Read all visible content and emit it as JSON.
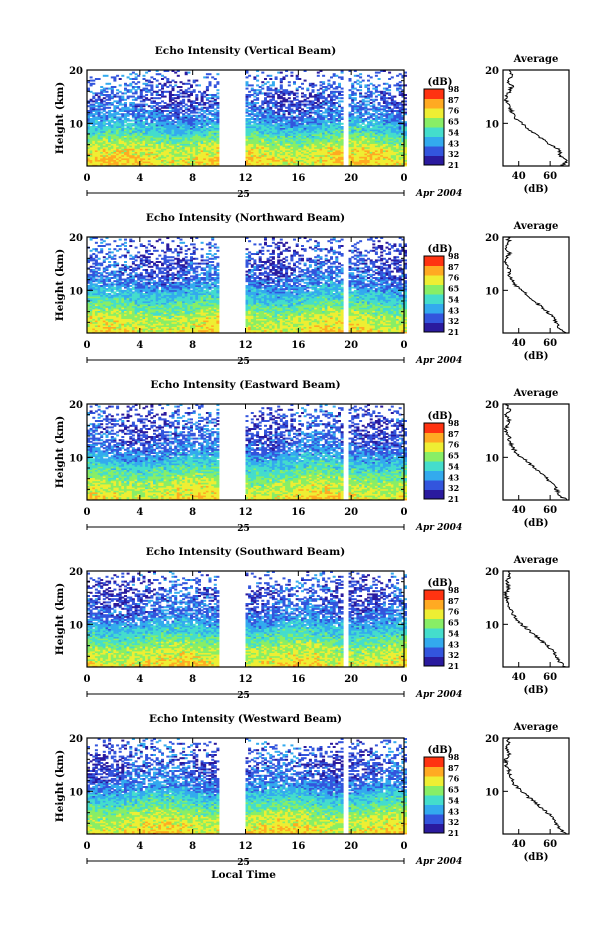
{
  "chart_data": [
    {
      "type": "heatmap",
      "title": "Echo Intensity (Vertical Beam)",
      "ylabel": "Height (km)",
      "y_ticks": [
        "20",
        "10"
      ],
      "x_ticks": [
        "0",
        "4",
        "8",
        "12",
        "16",
        "20",
        "0"
      ],
      "date_day": "25",
      "date_label": "Apr 2004",
      "ylim": [
        2,
        20
      ],
      "xlim": [
        0,
        24
      ],
      "data_gaps_hours": [
        [
          9.8,
          11.8
        ],
        [
          19.2,
          19.6
        ]
      ],
      "colorbar_label": "(dB)",
      "colorbar_ticks": [
        "98",
        "87",
        "76",
        "65",
        "54",
        "43",
        "32",
        "21"
      ],
      "profile": {
        "title": "Average",
        "xlabel": "(dB)",
        "x_ticks": [
          "40",
          "60"
        ],
        "y_ticks": [
          "20",
          "10"
        ],
        "xlim": [
          30,
          72
        ],
        "ylim": [
          2,
          20
        ],
        "heights": [
          2,
          3,
          4,
          5,
          6,
          7,
          8,
          9,
          10,
          11,
          12,
          13,
          14,
          15,
          16,
          17,
          18,
          19,
          20
        ],
        "values": [
          68,
          70,
          66,
          66,
          60,
          56,
          50,
          46,
          42,
          38,
          36,
          34,
          32,
          32,
          34,
          36,
          32,
          36,
          34
        ]
      }
    },
    {
      "type": "heatmap",
      "title": "Echo Intensity (Northward Beam)",
      "ylabel": "Height (km)",
      "y_ticks": [
        "20",
        "10"
      ],
      "x_ticks": [
        "0",
        "4",
        "8",
        "12",
        "16",
        "20",
        "0"
      ],
      "date_day": "25",
      "date_label": "Apr 2004",
      "ylim": [
        2,
        20
      ],
      "xlim": [
        0,
        24
      ],
      "data_gaps_hours": [
        [
          9.8,
          11.8
        ],
        [
          19.2,
          19.6
        ]
      ],
      "colorbar_label": "(dB)",
      "colorbar_ticks": [
        "98",
        "87",
        "76",
        "65",
        "54",
        "43",
        "32",
        "21"
      ],
      "profile": {
        "title": "Average",
        "xlabel": "(dB)",
        "x_ticks": [
          "40",
          "60"
        ],
        "y_ticks": [
          "20",
          "10"
        ],
        "xlim": [
          30,
          72
        ],
        "ylim": [
          2,
          20
        ],
        "heights": [
          2,
          3,
          4,
          5,
          6,
          7,
          8,
          9,
          10,
          11,
          12,
          13,
          14,
          15,
          16,
          17,
          18,
          19,
          20
        ],
        "values": [
          70,
          66,
          64,
          62,
          58,
          54,
          50,
          46,
          42,
          38,
          36,
          34,
          34,
          32,
          32,
          34,
          32,
          34,
          33
        ]
      }
    },
    {
      "type": "heatmap",
      "title": "Echo Intensity (Eastward Beam)",
      "ylabel": "Height (km)",
      "y_ticks": [
        "20",
        "10"
      ],
      "x_ticks": [
        "0",
        "4",
        "8",
        "12",
        "16",
        "20",
        "0"
      ],
      "date_day": "25",
      "date_label": "Apr 2004",
      "ylim": [
        2,
        20
      ],
      "xlim": [
        0,
        24
      ],
      "data_gaps_hours": [
        [
          9.8,
          11.8
        ],
        [
          19.2,
          19.6
        ]
      ],
      "colorbar_label": "(dB)",
      "colorbar_ticks": [
        "98",
        "87",
        "76",
        "65",
        "54",
        "43",
        "32",
        "21"
      ],
      "profile": {
        "title": "Average",
        "xlabel": "(dB)",
        "x_ticks": [
          "40",
          "60"
        ],
        "y_ticks": [
          "20",
          "10"
        ],
        "xlim": [
          30,
          72
        ],
        "ylim": [
          2,
          20
        ],
        "heights": [
          2,
          3,
          4,
          5,
          6,
          7,
          8,
          9,
          10,
          11,
          12,
          13,
          14,
          15,
          16,
          17,
          18,
          19,
          20
        ],
        "values": [
          70,
          66,
          64,
          62,
          58,
          54,
          50,
          46,
          42,
          38,
          36,
          34,
          34,
          32,
          32,
          34,
          32,
          34,
          33
        ]
      }
    },
    {
      "type": "heatmap",
      "title": "Echo Intensity (Southward Beam)",
      "ylabel": "Height (km)",
      "y_ticks": [
        "20",
        "10"
      ],
      "x_ticks": [
        "0",
        "4",
        "8",
        "12",
        "16",
        "20",
        "0"
      ],
      "date_day": "25",
      "date_label": "Apr 2004",
      "ylim": [
        2,
        20
      ],
      "xlim": [
        0,
        24
      ],
      "data_gaps_hours": [
        [
          9.8,
          11.8
        ],
        [
          19.2,
          19.6
        ]
      ],
      "colorbar_label": "(dB)",
      "colorbar_ticks": [
        "98",
        "87",
        "76",
        "65",
        "54",
        "43",
        "32",
        "21"
      ],
      "profile": {
        "title": "Average",
        "xlabel": "(dB)",
        "x_ticks": [
          "40",
          "60"
        ],
        "y_ticks": [
          "20",
          "10"
        ],
        "xlim": [
          30,
          72
        ],
        "ylim": [
          2,
          20
        ],
        "heights": [
          2,
          3,
          4,
          5,
          6,
          7,
          8,
          9,
          10,
          11,
          12,
          13,
          14,
          15,
          16,
          17,
          18,
          19,
          20
        ],
        "values": [
          70,
          66,
          64,
          62,
          58,
          54,
          50,
          46,
          42,
          38,
          36,
          34,
          34,
          32,
          32,
          34,
          32,
          34,
          33
        ]
      }
    },
    {
      "type": "heatmap",
      "title": "Echo Intensity (Westward Beam)",
      "ylabel": "Height (km)",
      "y_ticks": [
        "20",
        "10"
      ],
      "x_ticks": [
        "0",
        "4",
        "8",
        "12",
        "16",
        "20",
        "0"
      ],
      "date_day": "25",
      "date_label": "Apr 2004",
      "ylim": [
        2,
        20
      ],
      "xlim": [
        0,
        24
      ],
      "data_gaps_hours": [
        [
          9.8,
          11.8
        ],
        [
          19.2,
          19.6
        ]
      ],
      "colorbar_label": "(dB)",
      "colorbar_ticks": [
        "98",
        "87",
        "76",
        "65",
        "54",
        "43",
        "32",
        "21"
      ],
      "profile": {
        "title": "Average",
        "xlabel": "(dB)",
        "x_ticks": [
          "40",
          "60"
        ],
        "y_ticks": [
          "20",
          "10"
        ],
        "xlim": [
          30,
          72
        ],
        "ylim": [
          2,
          20
        ],
        "heights": [
          2,
          3,
          4,
          5,
          6,
          7,
          8,
          9,
          10,
          11,
          12,
          13,
          14,
          15,
          16,
          17,
          18,
          19,
          20
        ],
        "values": [
          70,
          66,
          64,
          62,
          58,
          54,
          50,
          46,
          42,
          38,
          36,
          34,
          34,
          32,
          32,
          34,
          32,
          34,
          33
        ]
      }
    }
  ],
  "footer": {
    "xlabel": "Local Time"
  },
  "colormap": [
    "#2a1a9e",
    "#3355dd",
    "#33aaee",
    "#44ddcc",
    "#88ee66",
    "#eeee33",
    "#ffaa22",
    "#ff3311"
  ]
}
